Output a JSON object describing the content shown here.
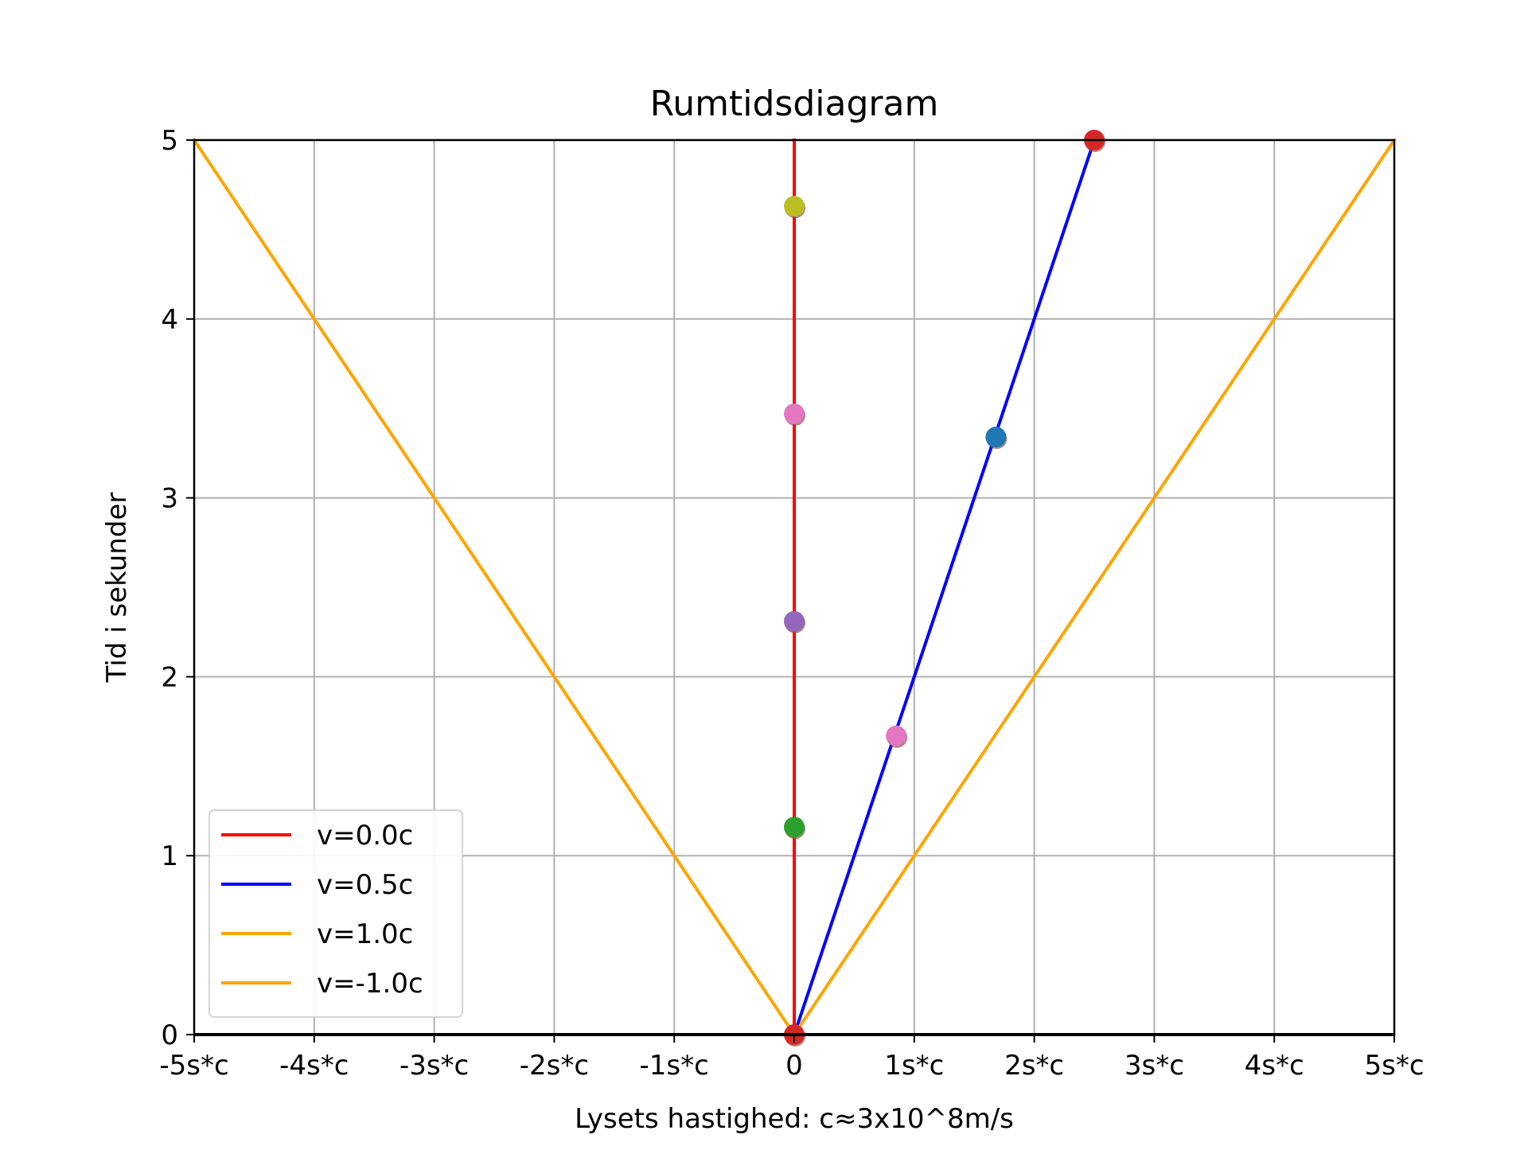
{
  "chart_data": {
    "type": "line",
    "title": "Rumtidsdiagram",
    "xlabel": "Lysets hastighed: c≈3x10^8m/s",
    "ylabel": "Tid i sekunder",
    "xlim": [
      -5,
      5
    ],
    "ylim": [
      0,
      5
    ],
    "grid": true,
    "legend_position": "lower left",
    "x_ticks": [
      {
        "value": -5,
        "label": "-5s*c"
      },
      {
        "value": -4,
        "label": "-4s*c"
      },
      {
        "value": -3,
        "label": "-3s*c"
      },
      {
        "value": -2,
        "label": "-2s*c"
      },
      {
        "value": -1,
        "label": "-1s*c"
      },
      {
        "value": 0,
        "label": "0"
      },
      {
        "value": 1,
        "label": "1s*c"
      },
      {
        "value": 2,
        "label": "2s*c"
      },
      {
        "value": 3,
        "label": "3s*c"
      },
      {
        "value": 4,
        "label": "4s*c"
      },
      {
        "value": 5,
        "label": "5s*c"
      }
    ],
    "y_ticks": [
      {
        "value": 0,
        "label": "0"
      },
      {
        "value": 1,
        "label": "1"
      },
      {
        "value": 2,
        "label": "2"
      },
      {
        "value": 3,
        "label": "3"
      },
      {
        "value": 4,
        "label": "4"
      },
      {
        "value": 5,
        "label": "5"
      }
    ],
    "series": [
      {
        "name": "v=0.0c",
        "color": "#ff0000",
        "x": [
          0,
          0
        ],
        "y": [
          0,
          5
        ]
      },
      {
        "name": "v=0.5c",
        "color": "#0000ff",
        "x": [
          0,
          2.5
        ],
        "y": [
          0,
          5
        ]
      },
      {
        "name": "v=1.0c",
        "color": "#ffa500",
        "x": [
          0,
          5
        ],
        "y": [
          0,
          5
        ]
      },
      {
        "name": "v=-1.0c",
        "color": "#ffa500",
        "x": [
          0,
          -5
        ],
        "y": [
          0,
          5
        ]
      }
    ],
    "points": [
      {
        "x": 0,
        "y": 0,
        "color": "#d62728"
      },
      {
        "x": 0,
        "y": 1.16,
        "color": "#2ca02c"
      },
      {
        "x": 0,
        "y": 2.31,
        "color": "#9467bd"
      },
      {
        "x": 0,
        "y": 3.47,
        "color": "#e377c2"
      },
      {
        "x": 0,
        "y": 4.63,
        "color": "#bcbd22"
      },
      {
        "x": 0.85,
        "y": 1.67,
        "color": "#e377c2"
      },
      {
        "x": 1.68,
        "y": 3.34,
        "color": "#1f77b4"
      },
      {
        "x": 2.5,
        "y": 5.0,
        "color": "#d62728"
      }
    ]
  }
}
